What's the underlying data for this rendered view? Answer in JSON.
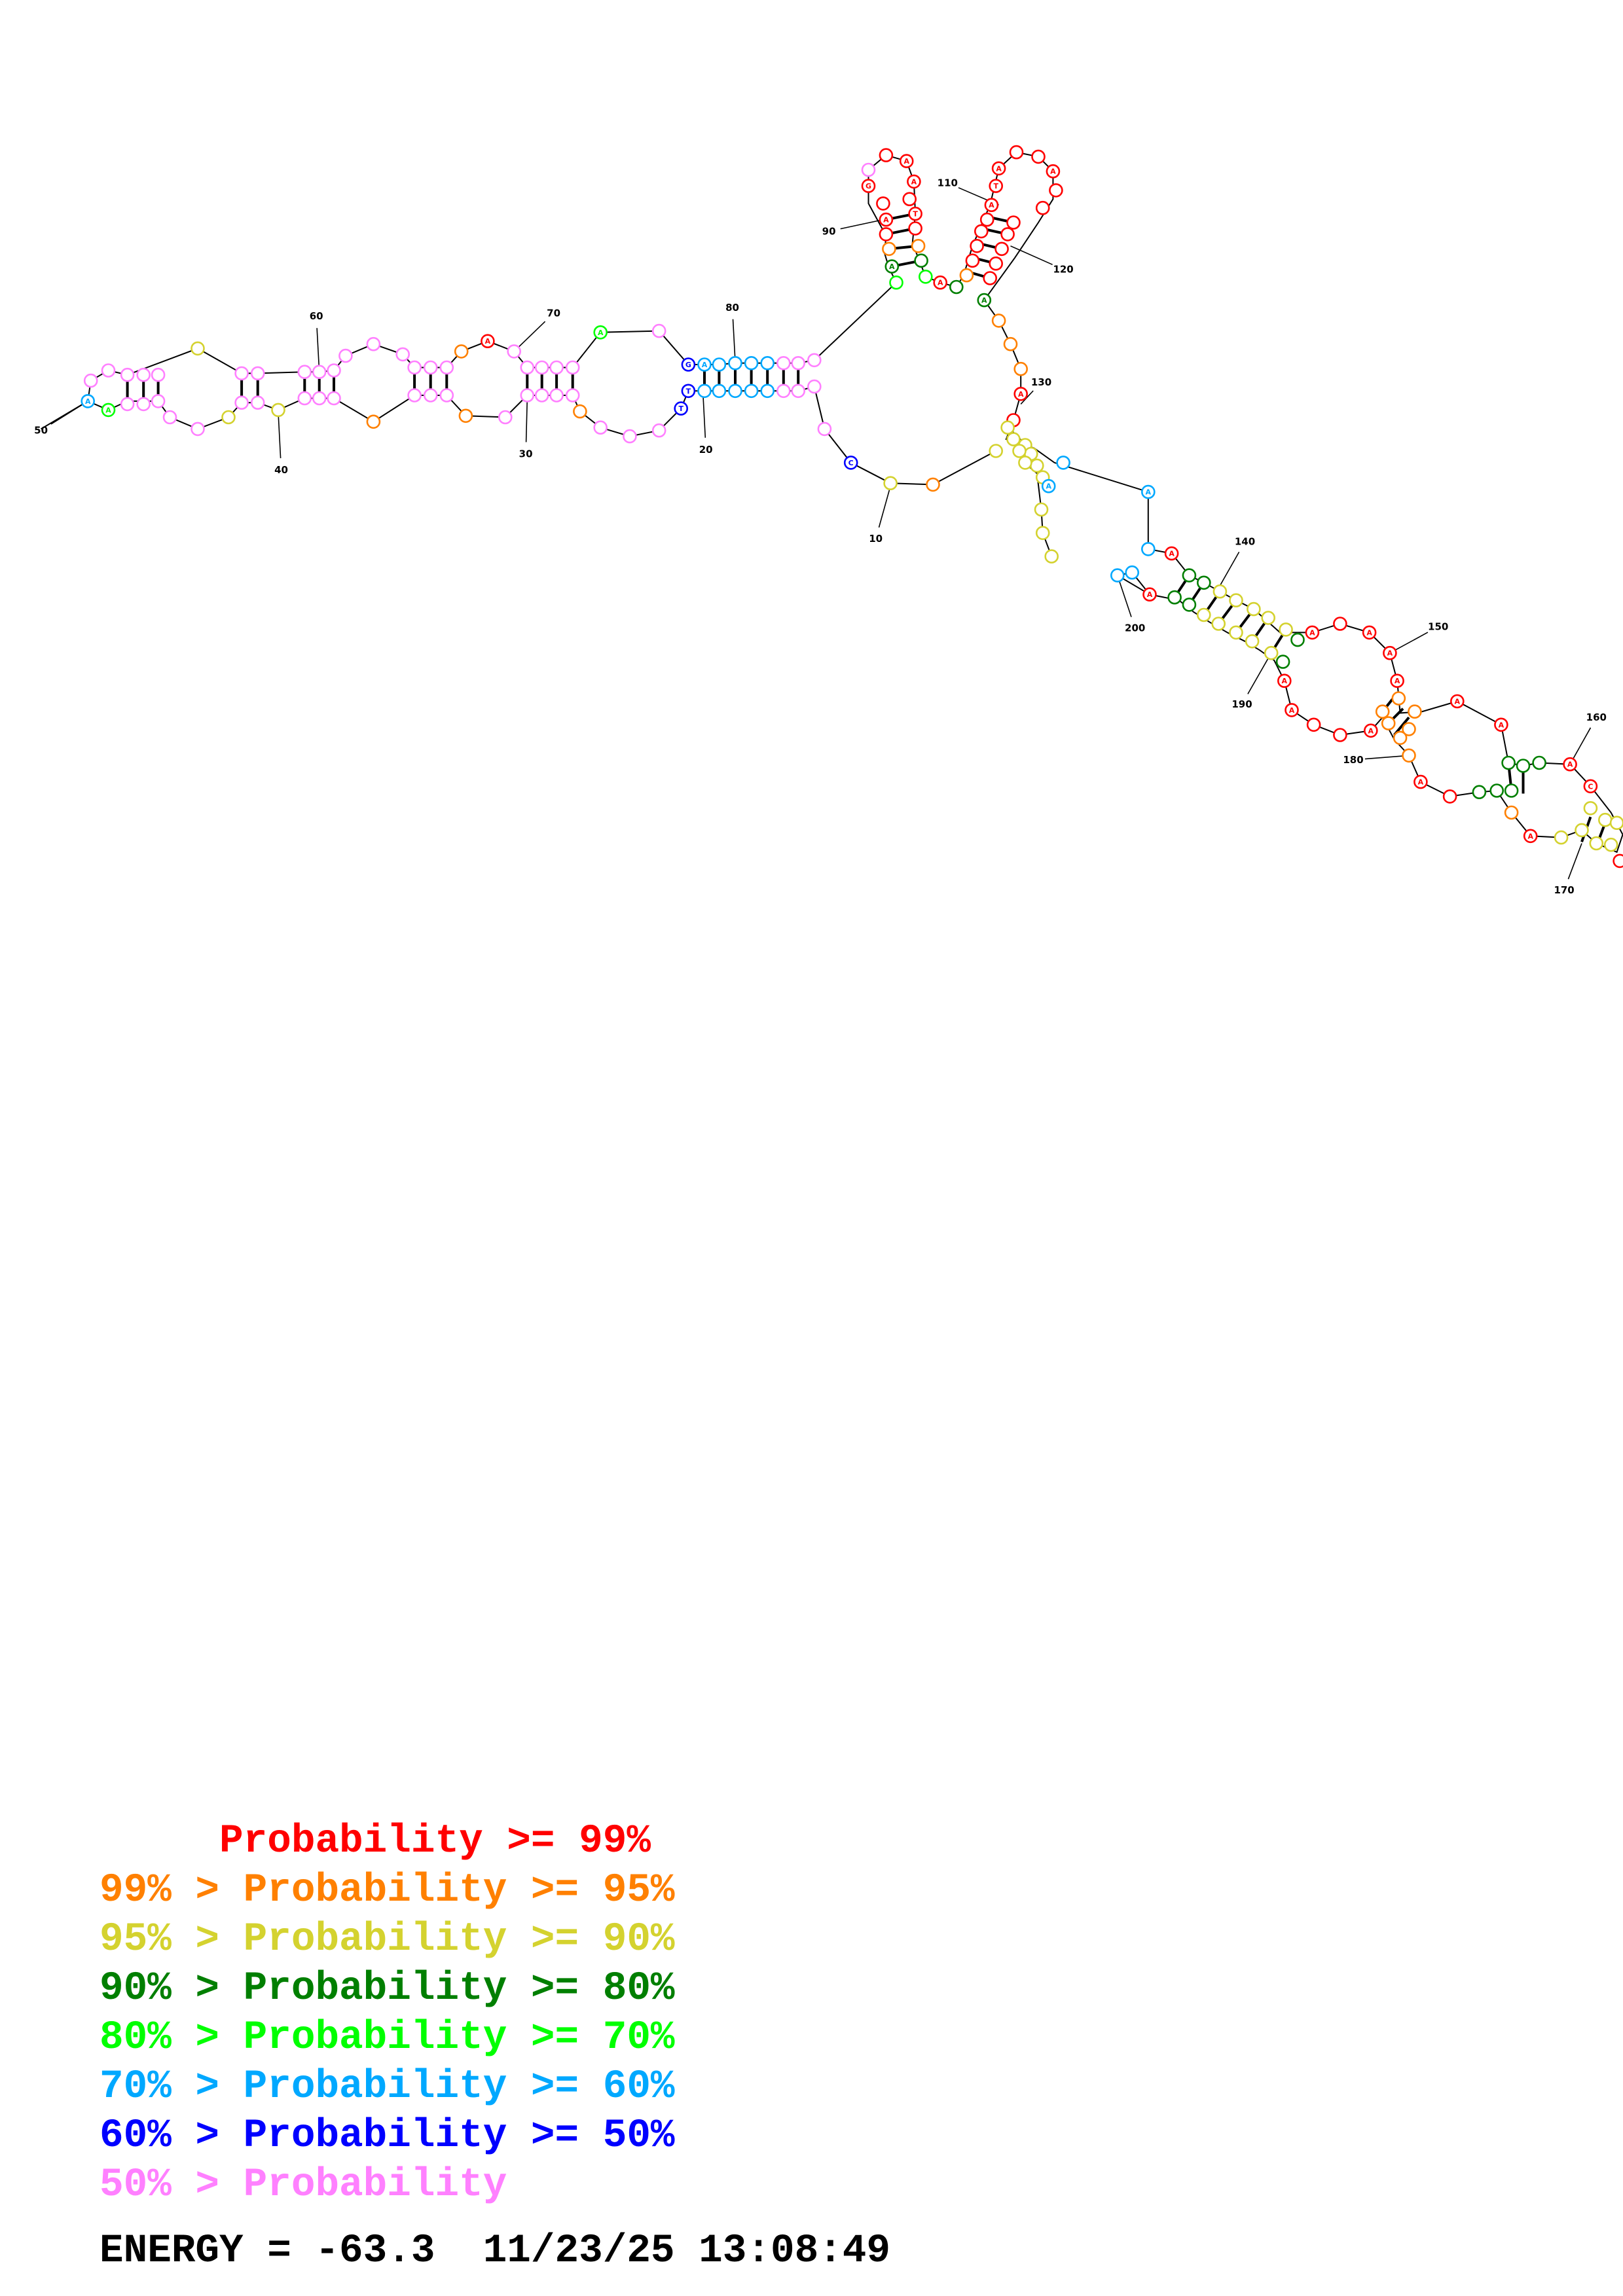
{
  "colors": {
    "ge99": "#ff0000",
    "ge95": "#ff8000",
    "ge90": "#d4d22f",
    "ge80": "#007f00",
    "ge70": "#00ff00",
    "ge60": "#00a8ff",
    "ge50": "#0000ff",
    "lt50": "#ff80ff"
  },
  "position_labels": [
    "10",
    "20",
    "30",
    "40",
    "50",
    "60",
    "70",
    "80",
    "90",
    "110",
    "120",
    "130",
    "140",
    "150",
    "160",
    "170",
    "180",
    "190",
    "200"
  ],
  "legend": [
    {
      "text": "     Probability >= 99%",
      "color": "#ff0000"
    },
    {
      "text": "99% > Probability >= 95%",
      "color": "#ff8000"
    },
    {
      "text": "95% > Probability >= 90%",
      "color": "#d4d22f"
    },
    {
      "text": "90% > Probability >= 80%",
      "color": "#007f00"
    },
    {
      "text": "80% > Probability >= 70%",
      "color": "#00ff00"
    },
    {
      "text": "70% > Probability >= 60%",
      "color": "#00a8ff"
    },
    {
      "text": "60% > Probability >= 50%",
      "color": "#0000ff"
    },
    {
      "text": "50% > Probability",
      "color": "#ff80ff"
    }
  ],
  "energy": "ENERGY = -63.3  11/23/25 13:08:49"
}
